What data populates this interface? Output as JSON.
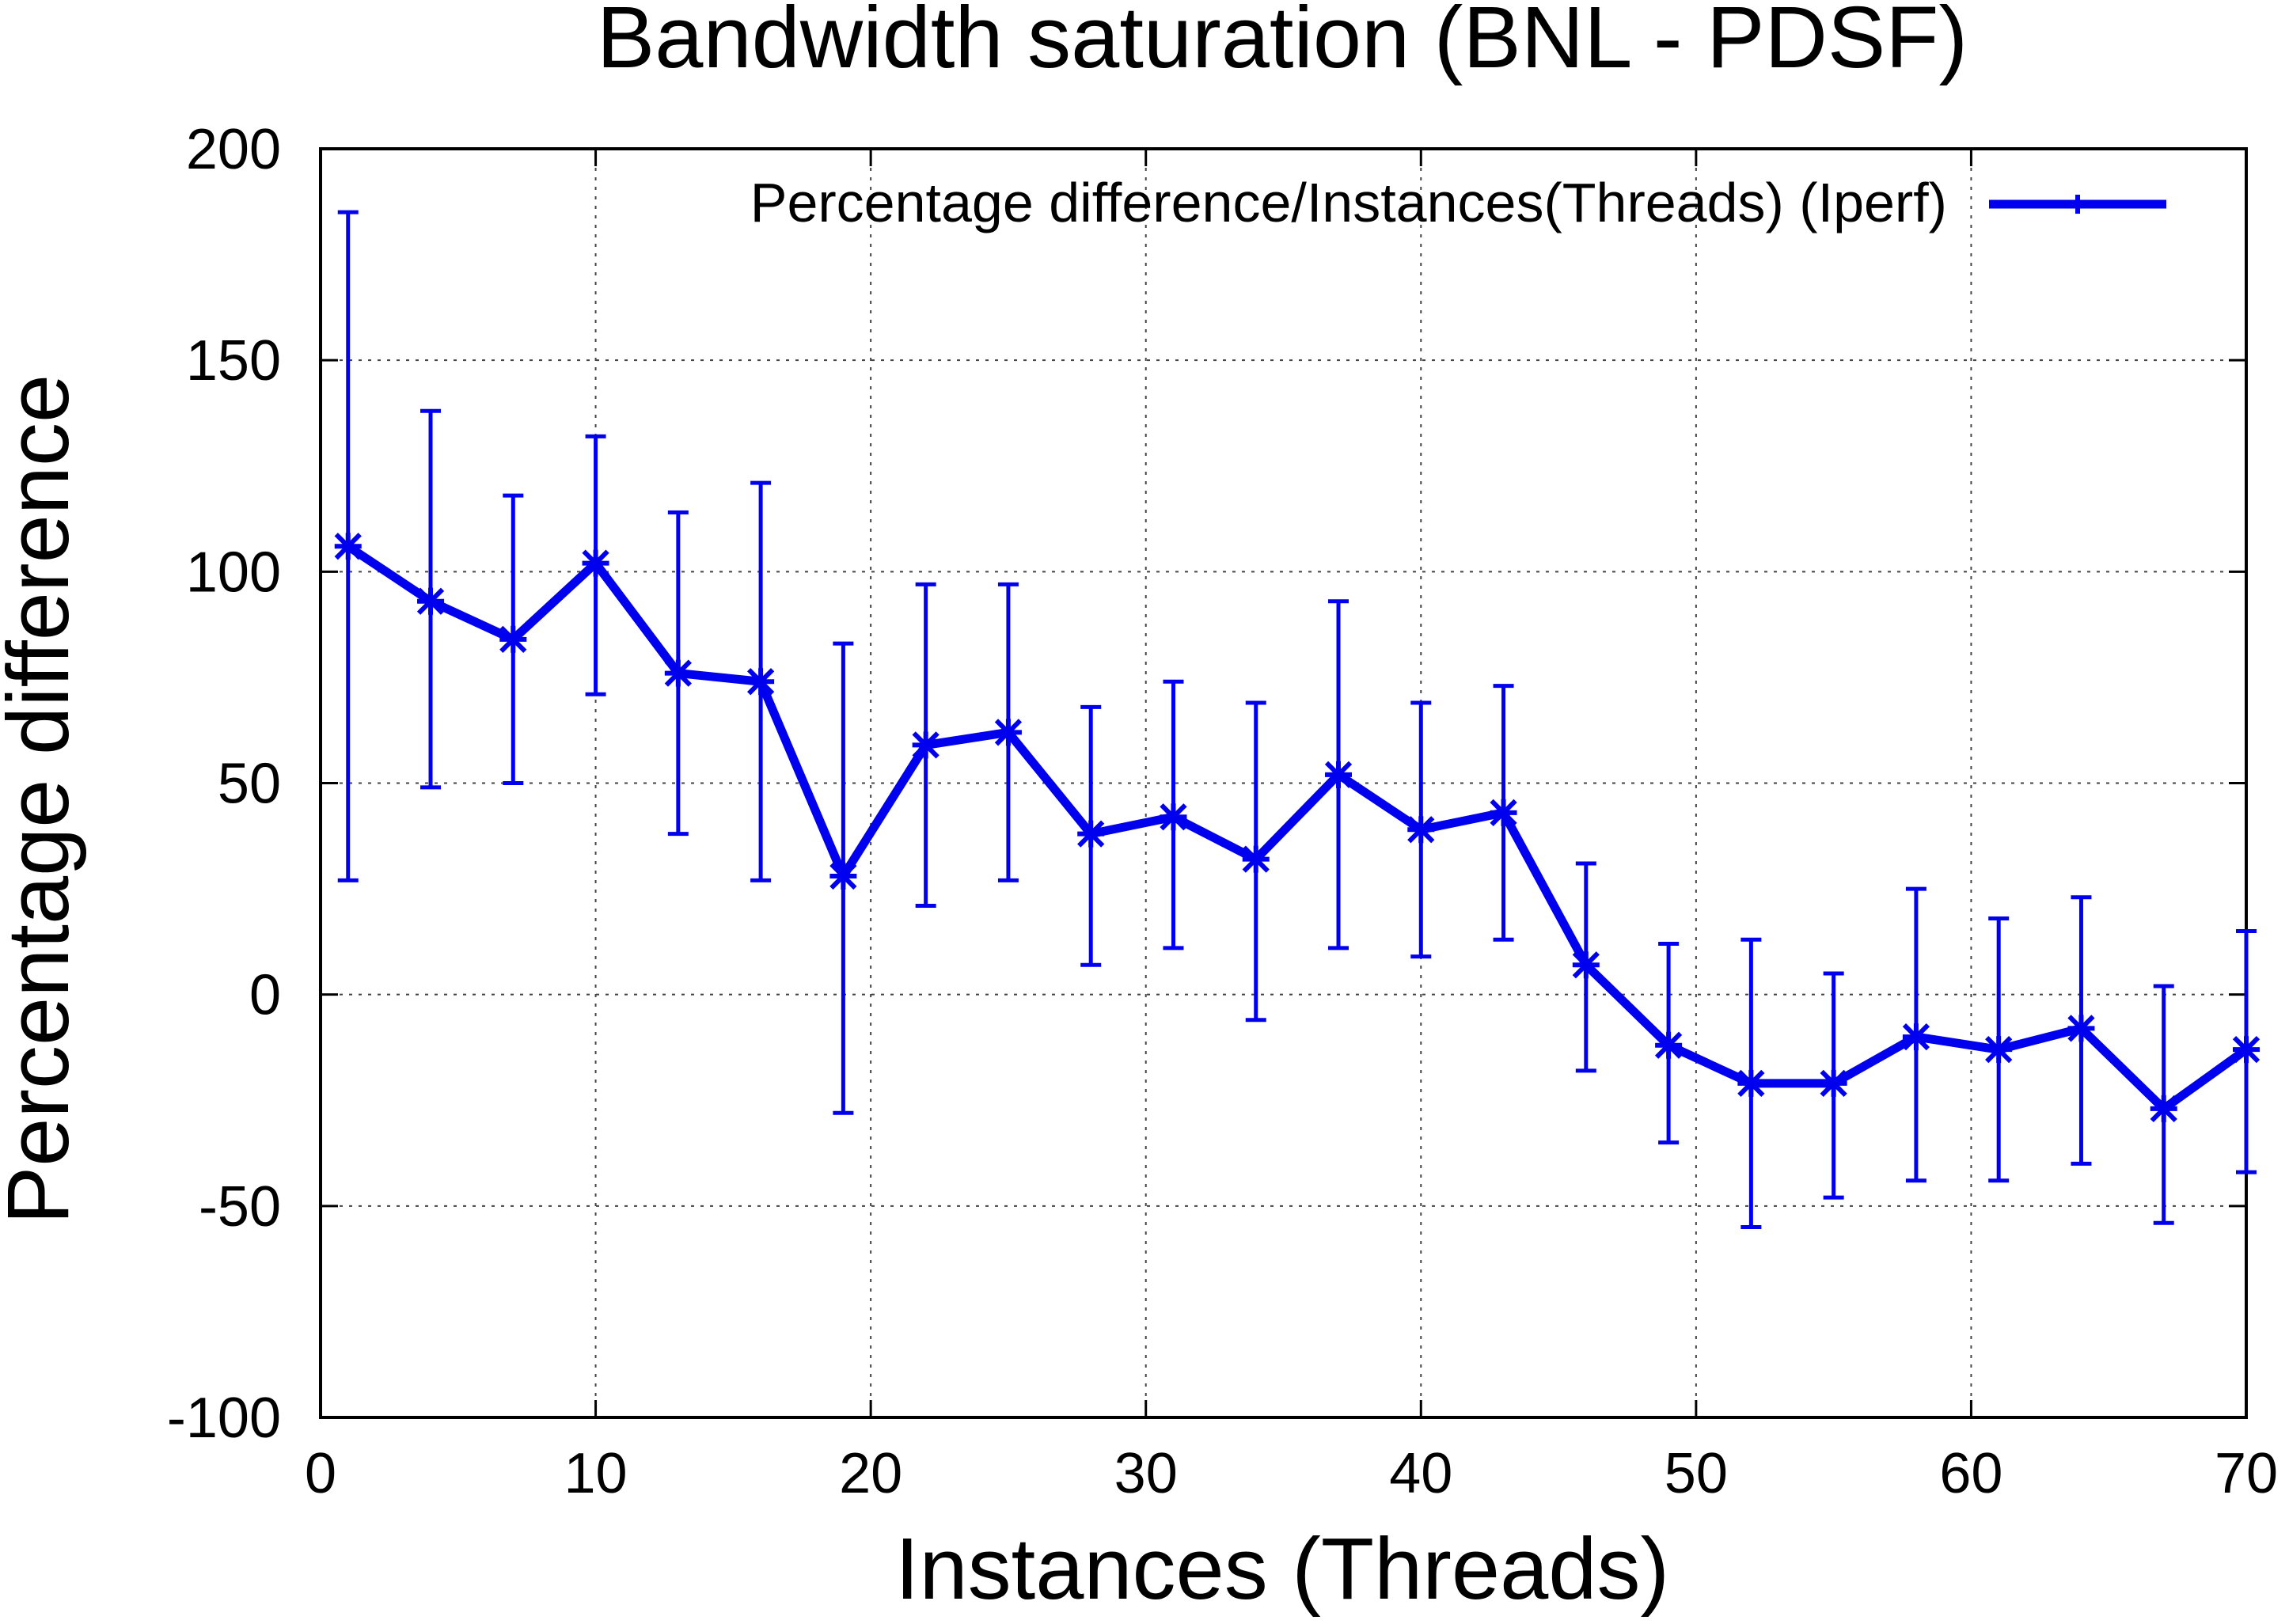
{
  "chart_data": {
    "type": "line",
    "title": "Bandwidth saturation (BNL - PDSF)",
    "xlabel": "Instances (Threads)",
    "ylabel": "Percentage difference",
    "xlim": [
      0,
      70
    ],
    "ylim": [
      -100,
      200
    ],
    "x_ticks": [
      "0",
      "10",
      "20",
      "30",
      "40",
      "50",
      "60",
      "70"
    ],
    "y_ticks": [
      "-100",
      "-50",
      "0",
      "50",
      "100",
      "150",
      "200"
    ],
    "grid": true,
    "legend_position": "top-right",
    "accent_color": "#0000ee",
    "series": [
      {
        "name": "Percentage difference/Instances(Threads) (Iperf)",
        "color": "#0000ee",
        "x": [
          1,
          4,
          7,
          10,
          13,
          16,
          19,
          22,
          25,
          28,
          31,
          34,
          37,
          40,
          43,
          46,
          49,
          52,
          55,
          58,
          61,
          64,
          67,
          70
        ],
        "y": [
          106,
          93,
          84,
          102,
          76,
          74,
          28,
          59,
          62,
          38,
          42,
          32,
          52,
          39,
          43,
          7,
          -12,
          -21,
          -21,
          -10,
          -13,
          -8,
          -27,
          -13
        ],
        "y_low": [
          27,
          49,
          50,
          71,
          38,
          27,
          -28,
          21,
          27,
          7,
          11,
          -6,
          11,
          9,
          13,
          -18,
          -35,
          -55,
          -48,
          -44,
          -44,
          -40,
          -54,
          -42
        ],
        "y_high": [
          185,
          138,
          118,
          132,
          114,
          121,
          83,
          97,
          97,
          68,
          74,
          69,
          93,
          69,
          73,
          31,
          12,
          13,
          5,
          25,
          18,
          23,
          2,
          15
        ]
      }
    ]
  }
}
